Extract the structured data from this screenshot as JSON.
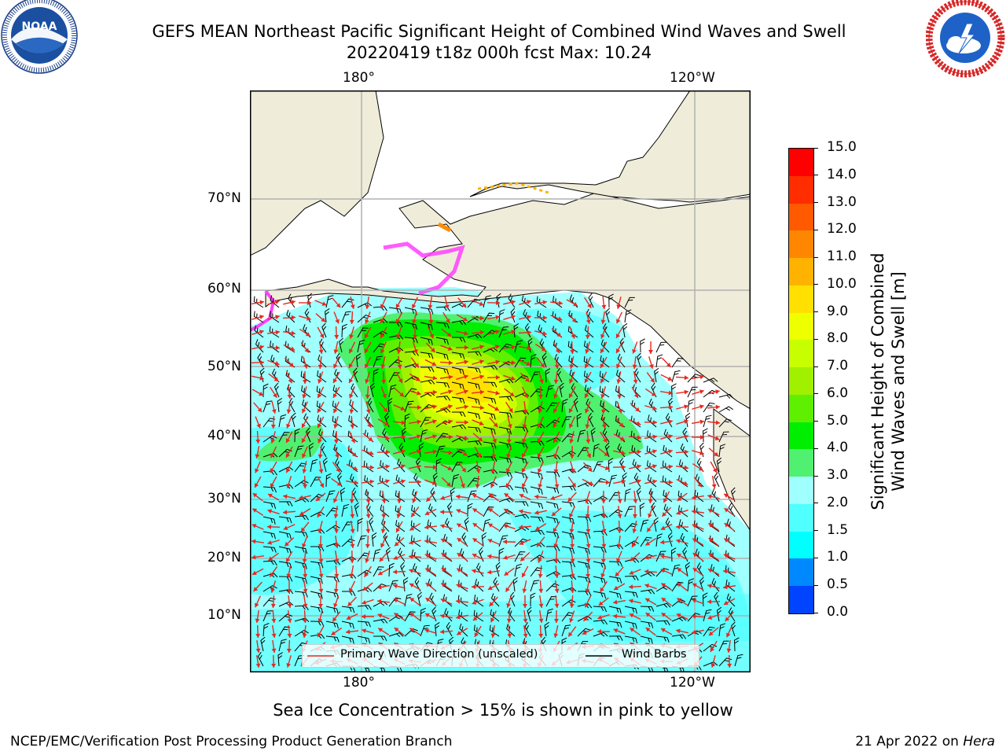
{
  "header": {
    "title_line1": "GEFS MEAN Northeast Pacific Significant Height of Combined Wind Waves and Swell",
    "title_line2": "20220419 t18z 000h fcst   Max: 10.24"
  },
  "logos": {
    "left": {
      "name": "noaa-logo",
      "text": "NOAA",
      "ring_text": "NATIONAL OCEANIC AND ATMOSPHERIC ADMINISTRATION · U.S. DEPARTMENT OF COMMERCE"
    },
    "right": {
      "name": "nws-logo",
      "ring_text": "NATIONAL WEATHER SERVICE"
    }
  },
  "map": {
    "projection": "plate-carree-like",
    "lon_labels_top": [
      "180°",
      "120°W"
    ],
    "lon_labels_bottom": [
      "180°",
      "120°W"
    ],
    "lat_labels": [
      "70°N",
      "60°N",
      "50°N",
      "40°N",
      "30°N",
      "20°N",
      "10°N"
    ],
    "colors": {
      "land": "#efedda",
      "ocean_base": "#a0ffff",
      "grid": "#b0b0b0",
      "wave_arrow": "#e8261e",
      "barb": "#000000"
    }
  },
  "legend": {
    "wave_direction": "Primary Wave Direction (unscaled)",
    "wind_barbs": "Wind Barbs"
  },
  "colorbar": {
    "label_line1": "Significant Height of Combined",
    "label_line2": "Wind Waves and Swell [m]",
    "ticks": [
      "15.0",
      "14.0",
      "13.0",
      "12.0",
      "11.0",
      "10.0",
      "9.0",
      "8.0",
      "7.0",
      "6.0",
      "5.0",
      "4.0",
      "3.0",
      "2.0",
      "1.5",
      "1.0",
      "0.5",
      "0.0"
    ],
    "colors": [
      "#ff0000",
      "#ff2d00",
      "#ff5a00",
      "#ff8600",
      "#ffb300",
      "#ffe000",
      "#eeff00",
      "#c8ff00",
      "#a0f000",
      "#5ef000",
      "#00ee00",
      "#50f070",
      "#a0ffff",
      "#50ffff",
      "#00ffff",
      "#0088ff",
      "#0044ff",
      "#0000ff"
    ]
  },
  "caption": "Sea Ice Concentration > 15% is shown in pink to yellow",
  "footer": {
    "left": "NCEP/EMC/Verification Post Processing Product Generation Branch",
    "right_date": "21 Apr 2022 on ",
    "right_machine": "Hera"
  }
}
